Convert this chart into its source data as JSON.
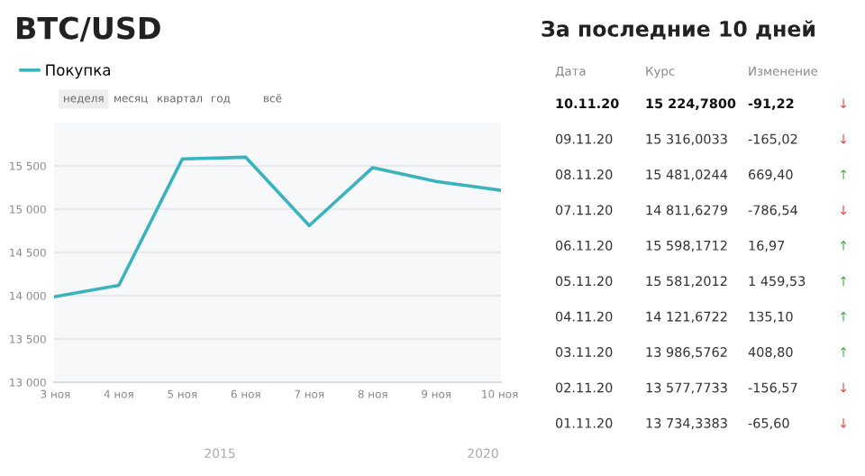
{
  "chart_data": [
    {
      "type": "line",
      "title": "BTC/USD",
      "categories": [
        "3 ноя",
        "4 ноя",
        "5 ноя",
        "6 ноя",
        "7 ноя",
        "8 ноя",
        "9 ноя",
        "10 ноя"
      ],
      "series": [
        {
          "name": "Покупка",
          "color": "#3ab3bd",
          "values": [
            13990,
            14120,
            15580,
            15600,
            14810,
            15480,
            15320,
            15220
          ]
        }
      ],
      "ylim": [
        13000,
        16000
      ],
      "yticks": [
        {
          "value": 13000,
          "label": "13 000"
        },
        {
          "value": 13500,
          "label": "13 500"
        },
        {
          "value": 14000,
          "label": "14 000"
        },
        {
          "value": 14500,
          "label": "14 500"
        },
        {
          "value": 15000,
          "label": "15 000"
        },
        {
          "value": 15500,
          "label": "15 500"
        }
      ],
      "grid": "y",
      "legend": "top left",
      "marker": "none",
      "line_style": "solid",
      "annotations": [
        "неделя",
        "месяц",
        "квартал",
        "год",
        "всё",
        "2015",
        "2020"
      ]
    },
    {
      "type": "other",
      "title": "За последние 10 дней",
      "categories": [
        "Дата",
        "Курс",
        "Изменение"
      ],
      "annotations": [
        "10.11.20",
        "15 224,7800",
        "-91,22",
        "↓",
        "09.11.20",
        "15 316,0033",
        "-165,02",
        "↓",
        "08.11.20",
        "15 481,0244",
        "669,40",
        "↑",
        "07.11.20",
        "14 811,6279",
        "-786,54",
        "↓",
        "06.11.20",
        "15 598,1712",
        "16,97",
        "↑",
        "05.11.20",
        "15 581,2012",
        "1 459,53",
        "↑",
        "04.11.20",
        "14 121,6722",
        "135,10",
        "↑",
        "03.11.20",
        "13 986,5762",
        "408,80",
        "↑",
        "02.11.20",
        "13 577,7733",
        "-156,57",
        "↓",
        "01.11.20",
        "13 734,3383",
        "-65,60",
        "↓"
      ],
      "colors": [
        "#d9534f",
        "#d9534f",
        "#4caf50",
        "#d9534f",
        "#4caf50",
        "#4caf50",
        "#4caf50",
        "#4caf50",
        "#d9534f",
        "#d9534f"
      ]
    }
  ]
}
